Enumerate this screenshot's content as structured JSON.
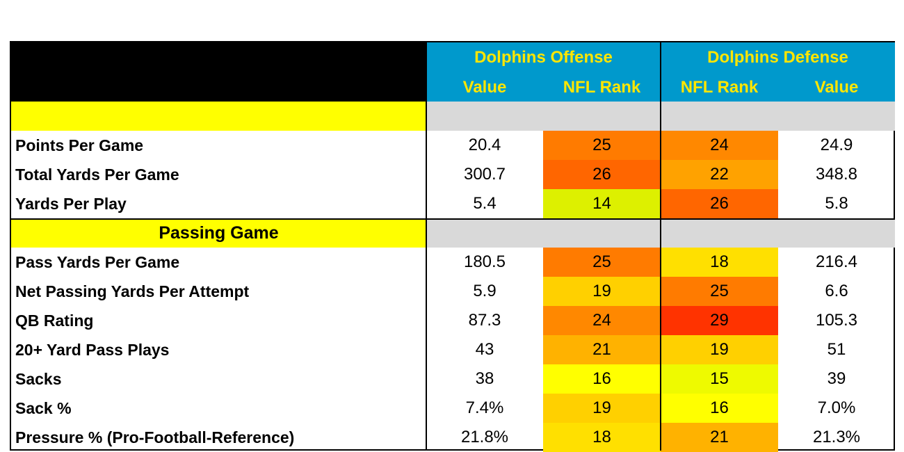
{
  "header": {
    "offense_title": "Dolphins Offense",
    "defense_title": "Dolphins Defense",
    "offense_value": "Value",
    "offense_rank": "NFL Rank",
    "defense_rank": "NFL Rank",
    "defense_value": "Value"
  },
  "colors": {
    "header_black": "#000000",
    "header_blue": "#0099cc",
    "header_text": "#ffe600",
    "section_yellow": "#ffff00",
    "section_gray": "#d9d9d9"
  },
  "sections": [
    {
      "title": "",
      "rows": [
        {
          "label": "Points Per Game",
          "off_value": "20.4",
          "off_rank": "25",
          "off_color": "#ff7b00",
          "def_rank": "24",
          "def_color": "#ff8800",
          "def_value": "24.9"
        },
        {
          "label": "Total Yards Per Game",
          "off_value": "300.7",
          "off_rank": "26",
          "off_color": "#ff6600",
          "def_rank": "22",
          "def_color": "#ffa200",
          "def_value": "348.8"
        },
        {
          "label": "Yards Per Play",
          "off_value": "5.4",
          "off_rank": "14",
          "off_color": "#ddf000",
          "def_rank": "26",
          "def_color": "#ff6600",
          "def_value": "5.8"
        }
      ]
    },
    {
      "title": "Passing Game",
      "rows": [
        {
          "label": "Pass Yards Per Game",
          "off_value": "180.5",
          "off_rank": "25",
          "off_color": "#ff7b00",
          "def_rank": "18",
          "def_color": "#ffe000",
          "def_value": "216.4"
        },
        {
          "label": "Net Passing Yards Per Attempt",
          "off_value": "5.9",
          "off_rank": "19",
          "off_color": "#ffd000",
          "def_rank": "25",
          "def_color": "#ff7b00",
          "def_value": "6.6"
        },
        {
          "label": "QB Rating",
          "off_value": "87.3",
          "off_rank": "24",
          "off_color": "#ff8800",
          "def_rank": "29",
          "def_color": "#ff3300",
          "def_value": "105.3"
        },
        {
          "label": "20+ Yard Pass Plays",
          "off_value": "43",
          "off_rank": "21",
          "off_color": "#ffb200",
          "def_rank": "19",
          "def_color": "#ffd000",
          "def_value": "51"
        },
        {
          "label": "Sacks",
          "off_value": "38",
          "off_rank": "16",
          "off_color": "#ffff00",
          "def_rank": "15",
          "def_color": "#eefa00",
          "def_value": "39"
        },
        {
          "label": "Sack %",
          "off_value": "7.4%",
          "off_rank": "19",
          "off_color": "#ffd000",
          "def_rank": "16",
          "def_color": "#ffff00",
          "def_value": "7.0%"
        },
        {
          "label": "Pressure % (Pro-Football-Reference)",
          "off_value": "21.8%",
          "off_rank": "18",
          "off_color": "#ffe000",
          "def_rank": "21",
          "def_color": "#ffb200",
          "def_value": "21.3%"
        }
      ]
    }
  ]
}
